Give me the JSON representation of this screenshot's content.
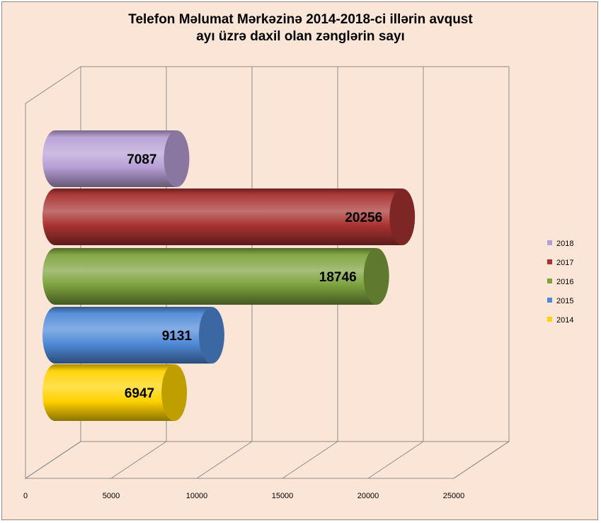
{
  "chart_data": {
    "type": "bar",
    "orientation": "horizontal",
    "style": "3d-cylinder",
    "title": [
      "Telefon Məlumat Mərkəzinə  2014-2018-ci  illərin avqust",
      "ayı üzrə  daxil  olan zənglərin sayı"
    ],
    "categories": [
      "2014",
      "2015",
      "2016",
      "2017",
      "2018"
    ],
    "values": [
      6947,
      9131,
      18746,
      20256,
      7087
    ],
    "colors": [
      "#ffd200",
      "#4f8ad8",
      "#7ea23e",
      "#a83331",
      "#b79fd6"
    ],
    "xlim": [
      0,
      25000
    ],
    "xticks": [
      "0",
      "5000",
      "10000",
      "15000",
      "20000",
      "25000"
    ],
    "grid": true,
    "legend": "right"
  }
}
